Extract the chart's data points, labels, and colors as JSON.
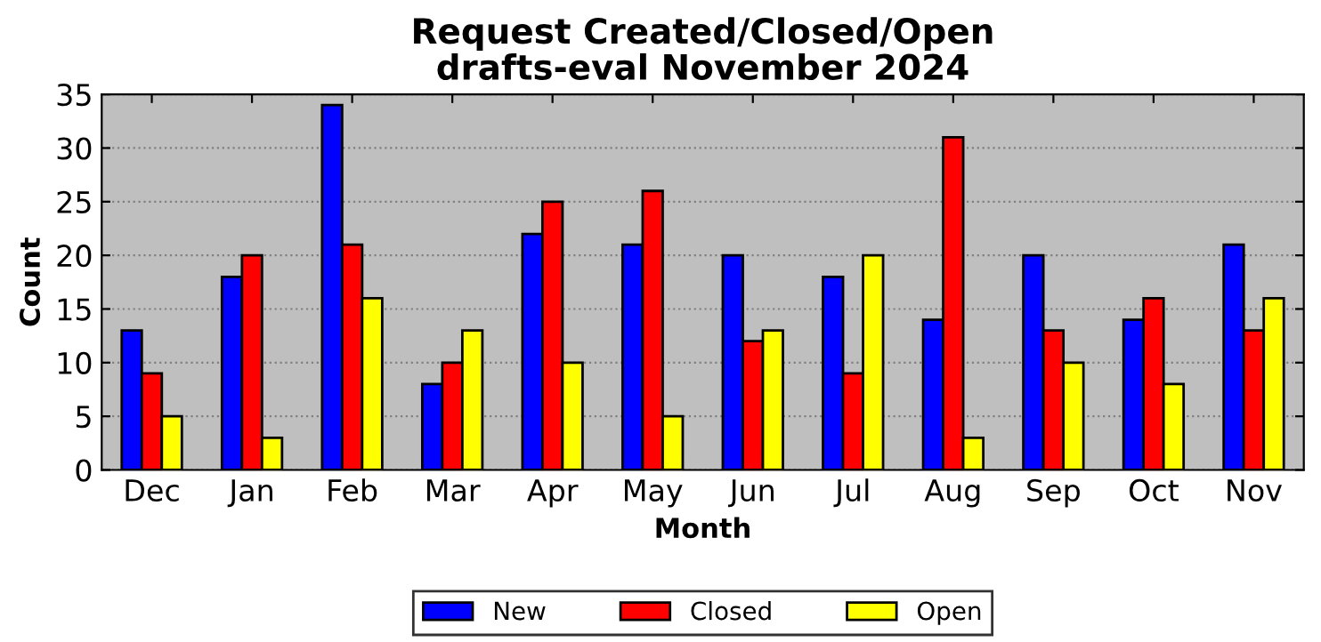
{
  "chart_data": {
    "type": "bar",
    "title": "Request Created/Closed/Open\ndrafts-eval November 2024",
    "xlabel": "Month",
    "ylabel": "Count",
    "categories": [
      "Dec",
      "Jan",
      "Feb",
      "Mar",
      "Apr",
      "May",
      "Jun",
      "Jul",
      "Aug",
      "Sep",
      "Oct",
      "Nov"
    ],
    "series": [
      {
        "name": "New",
        "color": "#0000ff",
        "values": [
          13,
          18,
          34,
          8,
          22,
          21,
          20,
          18,
          14,
          20,
          14,
          21
        ]
      },
      {
        "name": "Closed",
        "color": "#ff0000",
        "values": [
          9,
          20,
          21,
          10,
          25,
          26,
          12,
          9,
          31,
          13,
          16,
          13
        ]
      },
      {
        "name": "Open",
        "color": "#ffff00",
        "values": [
          5,
          3,
          16,
          13,
          10,
          5,
          13,
          20,
          3,
          10,
          8,
          16
        ]
      }
    ],
    "ylim": [
      0,
      35
    ],
    "yticks": [
      0,
      5,
      10,
      15,
      20,
      25,
      30,
      35
    ],
    "grid": "y",
    "legend": "bottom"
  }
}
